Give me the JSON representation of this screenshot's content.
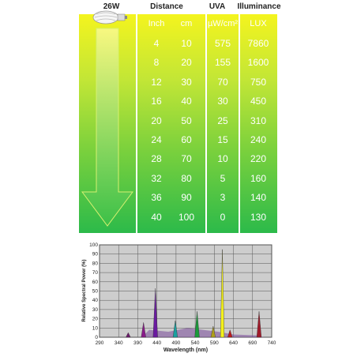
{
  "headers": {
    "lamp": "26W",
    "distance": "Distance",
    "uva": "UVA",
    "illuminance": "Illuminance"
  },
  "subheaders": {
    "inch": "Inch",
    "cm": "cm",
    "uva_unit": "µW/cm²",
    "lux": "LUX"
  },
  "rows": [
    {
      "inch": "4",
      "cm": "10",
      "uva": "575",
      "lux": "7860"
    },
    {
      "inch": "8",
      "cm": "20",
      "uva": "155",
      "lux": "1600"
    },
    {
      "inch": "12",
      "cm": "30",
      "uva": "70",
      "lux": "750"
    },
    {
      "inch": "16",
      "cm": "40",
      "uva": "30",
      "lux": "450"
    },
    {
      "inch": "20",
      "cm": "50",
      "uva": "25",
      "lux": "310"
    },
    {
      "inch": "24",
      "cm": "60",
      "uva": "15",
      "lux": "240"
    },
    {
      "inch": "28",
      "cm": "70",
      "uva": "10",
      "lux": "220"
    },
    {
      "inch": "32",
      "cm": "80",
      "uva": "5",
      "lux": "160"
    },
    {
      "inch": "36",
      "cm": "90",
      "uva": "3",
      "lux": "140"
    },
    {
      "inch": "40",
      "cm": "100",
      "uva": "0",
      "lux": "130"
    }
  ],
  "chart_data": {
    "type": "area",
    "xlabel": "Wavelength (nm)",
    "ylabel": "Relative Spectral Power (%)",
    "xlim": [
      290,
      740
    ],
    "ylim": [
      0,
      100
    ],
    "x_ticks": [
      290,
      340,
      390,
      440,
      490,
      540,
      590,
      640,
      690,
      740
    ],
    "y_ticks": [
      0,
      10,
      20,
      30,
      40,
      50,
      60,
      70,
      80,
      90,
      100
    ],
    "grid": true,
    "peaks": [
      {
        "x": 365,
        "y": 5,
        "color": "#6a1a6a"
      },
      {
        "x": 405,
        "y": 16,
        "color": "#8a1a8a"
      },
      {
        "x": 436,
        "y": 53,
        "color": "#6a1aa0"
      },
      {
        "x": 488,
        "y": 18,
        "color": "#1aa0a0"
      },
      {
        "x": 545,
        "y": 28,
        "color": "#1a9a3a"
      },
      {
        "x": 587,
        "y": 12,
        "color": "#b0a01a"
      },
      {
        "x": 611,
        "y": 95,
        "color": "#f4f01a"
      },
      {
        "x": 631,
        "y": 8,
        "color": "#c01a1a"
      },
      {
        "x": 707,
        "y": 28,
        "color": "#a01a2a"
      }
    ]
  }
}
